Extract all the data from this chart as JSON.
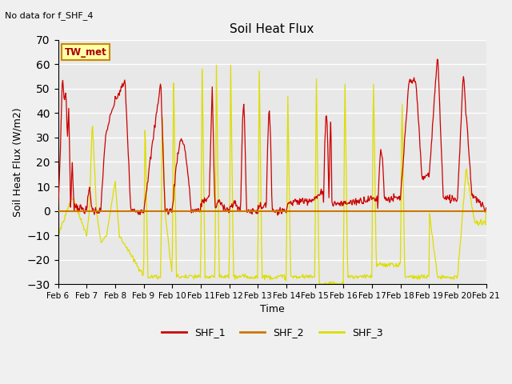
{
  "title": "Soil Heat Flux",
  "ylabel": "Soil Heat Flux (W/m2)",
  "xlabel": "Time",
  "annotation": "No data for f_SHF_4",
  "box_label": "TW_met",
  "ylim": [
    -30,
    70
  ],
  "yticks": [
    -30,
    -20,
    -10,
    0,
    10,
    20,
    30,
    40,
    50,
    60,
    70
  ],
  "x_tick_labels": [
    "Feb 6",
    "Feb 7",
    "Feb 8",
    "Feb 9",
    "Feb 10",
    "Feb 11",
    "Feb 12",
    "Feb 13",
    "Feb 14",
    "Feb 15",
    "Feb 16",
    "Feb 17",
    "Feb 18",
    "Feb 19",
    "Feb 20",
    "Feb 21"
  ],
  "color_SHF1": "#cc0000",
  "color_SHF2": "#cc7700",
  "color_SHF3": "#dddd00",
  "bg_color": "#e8e8e8",
  "fig_bg": "#f0f0f0",
  "legend_labels": [
    "SHF_1",
    "SHF_2",
    "SHF_3"
  ],
  "n_days": 15,
  "pts_per_day": 48
}
